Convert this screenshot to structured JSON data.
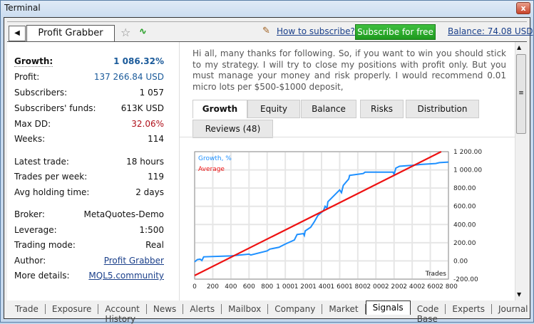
{
  "window": {
    "title": "Terminal",
    "close": "x"
  },
  "toolbar": {
    "back": "◀",
    "tab": "Profit Grabber",
    "how": "How to subscribe?",
    "subscribe": "Subscribe for free",
    "balance": "Balance: 74.08 USD"
  },
  "stats": [
    {
      "label": "Growth:",
      "value": "1 086.32%"
    },
    {
      "label": "Profit:",
      "value": "137 266.84 USD"
    },
    {
      "label": "Subscribers:",
      "value": "1 057"
    },
    {
      "label": "Subscribers' funds:",
      "value": "613K USD"
    },
    {
      "label": "Max DD:",
      "value": "32.06%"
    },
    {
      "label": "Weeks:",
      "value": "114"
    },
    {
      "label": "Latest trade:",
      "value": "18 hours"
    },
    {
      "label": "Trades per week:",
      "value": "119"
    },
    {
      "label": "Avg holding time:",
      "value": "2 days"
    },
    {
      "label": "Broker:",
      "value": "MetaQuotes-Demo"
    },
    {
      "label": "Leverage:",
      "value": "1:500"
    },
    {
      "label": "Trading mode:",
      "value": "Real"
    },
    {
      "label": "Author:",
      "value": "Profit Grabber"
    },
    {
      "label": "More details:",
      "value": "MQL5.community"
    }
  ],
  "description": "Hi all, many thanks for following. So, if you want to win you should stick to my strategy. I will try to close my positions with profit only. But you must manage your money and risk properly. I would recommend 0.01 micro lots per $500-$1000 deposit,",
  "content_tabs": [
    "Growth",
    "Equity",
    "Balance",
    "Risks",
    "Distribution",
    "Reviews (48)"
  ],
  "bottom_tabs": [
    "Trade",
    "Exposure",
    "Account History",
    "News",
    "Alerts",
    "Mailbox",
    "Company",
    "Market",
    "Signals",
    "Code Base",
    "Experts",
    "Journal"
  ],
  "active_bottom_tab": "Signals",
  "colors": {
    "growth": "#1e90ff",
    "average": "#ee1111",
    "subscribe": "#22a022"
  },
  "chart_data": {
    "type": "line",
    "xlabel": "Trades",
    "ylabel": "",
    "xlim": [
      0,
      2800
    ],
    "ylim": [
      -200,
      1200
    ],
    "x_ticks": [
      "0",
      "200",
      "400",
      "600",
      "800",
      "1 000",
      "1 200",
      "1 400",
      "1 600",
      "1 800",
      "2 000",
      "2 200",
      "2 400",
      "2 600",
      "2 800"
    ],
    "y_ticks": [
      "1 200.00",
      "1 000.00",
      "800.00",
      "600.00",
      "400.00",
      "200.00",
      "0.00",
      "-200.00"
    ],
    "grid": true,
    "legend": "top-left",
    "series": [
      {
        "name": "Growth, %",
        "color": "#1e90ff",
        "points": [
          [
            0,
            -10
          ],
          [
            30,
            15
          ],
          [
            60,
            20
          ],
          [
            80,
            5
          ],
          [
            100,
            45
          ],
          [
            400,
            55
          ],
          [
            600,
            75
          ],
          [
            620,
            65
          ],
          [
            800,
            110
          ],
          [
            830,
            130
          ],
          [
            930,
            150
          ],
          [
            1000,
            185
          ],
          [
            1100,
            230
          ],
          [
            1130,
            290
          ],
          [
            1200,
            300
          ],
          [
            1210,
            280
          ],
          [
            1220,
            330
          ],
          [
            1280,
            370
          ],
          [
            1320,
            430
          ],
          [
            1360,
            500
          ],
          [
            1420,
            550
          ],
          [
            1440,
            600
          ],
          [
            1460,
            580
          ],
          [
            1470,
            650
          ],
          [
            1600,
            780
          ],
          [
            1620,
            750
          ],
          [
            1640,
            830
          ],
          [
            1700,
            900
          ],
          [
            1710,
            940
          ],
          [
            1860,
            960
          ],
          [
            1880,
            975
          ],
          [
            2190,
            975
          ],
          [
            2200,
            950
          ],
          [
            2220,
            1020
          ],
          [
            2260,
            1040
          ],
          [
            2400,
            1050
          ],
          [
            2500,
            1060
          ],
          [
            2660,
            1070
          ],
          [
            2700,
            1080
          ],
          [
            2800,
            1086
          ]
        ]
      },
      {
        "name": "Average",
        "color": "#ee1111",
        "points": [
          [
            0,
            -160
          ],
          [
            2720,
            1200
          ]
        ]
      }
    ]
  }
}
